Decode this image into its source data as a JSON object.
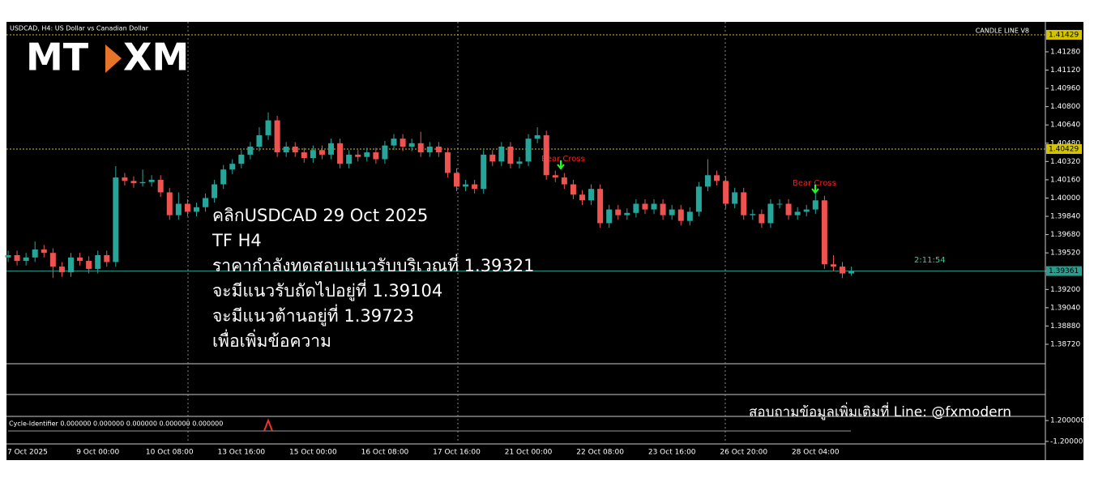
{
  "chart_data": {
    "type": "candlestick",
    "title": "USDCAD, H4:  US Dollar vs Canadian Dollar",
    "indicator_name": "CANDLE LINE V8",
    "logo": {
      "left": "MT",
      "right": "XM"
    },
    "categories": [
      "7 Oct 2025",
      null,
      null,
      null,
      null,
      null,
      null,
      null,
      null,
      null,
      "9 Oct 00:00",
      null,
      null,
      null,
      null,
      null,
      null,
      null,
      "10 Oct 08:00",
      null,
      null,
      null,
      null,
      null,
      null,
      null,
      "13 Oct 16:00",
      null,
      null,
      null,
      null,
      null,
      null,
      null,
      "15 Oct 00:00",
      null,
      null,
      null,
      null,
      null,
      null,
      null,
      "16 Oct 08:00",
      null,
      null,
      null,
      null,
      null,
      null,
      null,
      "17 Oct 16:00",
      null,
      null,
      null,
      null,
      null,
      null,
      null,
      "21 Oct 00:00",
      null,
      null,
      null,
      null,
      null,
      null,
      null,
      "22 Oct 08:00",
      null,
      null,
      null,
      null,
      null,
      null,
      null,
      "23 Oct 16:00",
      null,
      null,
      null,
      null,
      null,
      null,
      null,
      "26 Oct 20:00",
      null,
      null,
      null,
      null,
      null,
      null,
      null,
      "28 Oct 04:00",
      null,
      null,
      null,
      null
    ],
    "open": [
      1.3948,
      1.395,
      1.3945,
      1.3948,
      1.3955,
      1.3952,
      1.394,
      1.3935,
      1.3948,
      1.3945,
      1.3938,
      1.395,
      1.3944,
      1.4018,
      1.4015,
      1.4013,
      1.4014,
      1.4016,
      1.4005,
      1.3985,
      1.3995,
      1.3988,
      1.3992,
      1.4,
      1.4012,
      1.4025,
      1.403,
      1.4038,
      1.4045,
      1.4055,
      1.4068,
      1.404,
      1.4045,
      1.404,
      1.4035,
      1.4042,
      1.4038,
      1.4048,
      1.403,
      1.4038,
      1.4036,
      1.404,
      1.4034,
      1.4046,
      1.4052,
      1.4045,
      1.4048,
      1.404,
      1.4045,
      1.404,
      1.4022,
      1.401,
      1.4012,
      1.4008,
      1.4038,
      1.4032,
      1.4045,
      1.403,
      1.4032,
      1.4052,
      1.4055,
      1.402,
      1.4018,
      1.4012,
      1.4003,
      1.3998,
      1.4008,
      1.3978,
      1.399,
      1.3985,
      1.3987,
      1.3995,
      1.399,
      1.3995,
      1.3985,
      1.399,
      1.398,
      1.3988,
      1.401,
      1.402,
      1.4015,
      1.3995,
      1.4005,
      1.3985,
      1.3986,
      1.3978,
      1.3995,
      1.3995,
      1.3985,
      1.3988,
      1.399,
      1.3998,
      1.3942,
      1.394,
      1.3934
    ],
    "high": [
      1.3954,
      1.3954,
      1.3952,
      1.3962,
      1.3959,
      1.3956,
      1.3944,
      1.3952,
      1.3952,
      1.3949,
      1.3954,
      1.3954,
      1.4028,
      1.4022,
      1.4019,
      1.4025,
      1.402,
      1.402,
      1.4009,
      1.4005,
      1.3999,
      1.3996,
      1.4004,
      1.4016,
      1.4029,
      1.4034,
      1.4042,
      1.4049,
      1.4062,
      1.4075,
      1.4072,
      1.4049,
      1.4049,
      1.4044,
      1.4046,
      1.4046,
      1.4052,
      1.4052,
      1.4042,
      1.4042,
      1.4044,
      1.4044,
      1.405,
      1.4056,
      1.4056,
      1.4052,
      1.4058,
      1.4049,
      1.4049,
      1.4044,
      1.4026,
      1.4016,
      1.4016,
      1.4042,
      1.4042,
      1.4049,
      1.4049,
      1.4036,
      1.4056,
      1.4062,
      1.4059,
      1.4024,
      1.4022,
      1.4016,
      1.4007,
      1.4012,
      1.4012,
      1.3994,
      1.3994,
      1.3991,
      1.3999,
      1.3999,
      1.3999,
      1.3999,
      1.3994,
      1.3994,
      1.3992,
      1.4014,
      1.4034,
      1.4024,
      1.4019,
      1.4009,
      1.4009,
      1.399,
      1.399,
      1.3999,
      1.3999,
      1.3999,
      1.3992,
      1.3994,
      1.4005,
      1.4002,
      1.395,
      1.3944,
      1.394
    ],
    "low": [
      1.3944,
      1.3941,
      1.3941,
      1.3944,
      1.3948,
      1.393,
      1.3931,
      1.3931,
      1.3941,
      1.3934,
      1.3934,
      1.394,
      1.394,
      1.4011,
      1.4009,
      1.401,
      1.401,
      1.4001,
      1.3981,
      1.3981,
      1.3984,
      1.3984,
      1.3988,
      1.3996,
      1.4008,
      1.4021,
      1.4026,
      1.4034,
      1.4041,
      1.4051,
      1.4036,
      1.4036,
      1.4036,
      1.4031,
      1.4031,
      1.4034,
      1.4034,
      1.4026,
      1.4026,
      1.4032,
      1.4032,
      1.403,
      1.403,
      1.4042,
      1.4041,
      1.4041,
      1.4036,
      1.4036,
      1.4036,
      1.4018,
      1.4006,
      1.4006,
      1.4004,
      1.4004,
      1.4028,
      1.4028,
      1.4026,
      1.4026,
      1.4028,
      1.4048,
      1.4016,
      1.4014,
      1.4008,
      1.3999,
      1.3994,
      1.3994,
      1.3974,
      1.3974,
      1.3981,
      1.3981,
      1.3983,
      1.3986,
      1.3986,
      1.3981,
      1.3981,
      1.3976,
      1.3976,
      1.3984,
      1.4006,
      1.4011,
      1.3991,
      1.3991,
      1.3981,
      1.3981,
      1.3974,
      1.3974,
      1.3991,
      1.3981,
      1.3981,
      1.3984,
      1.3986,
      1.3938,
      1.3936,
      1.393,
      1.3932
    ],
    "close": [
      1.395,
      1.3945,
      1.3948,
      1.3955,
      1.3952,
      1.394,
      1.3935,
      1.3948,
      1.3945,
      1.3938,
      1.395,
      1.3944,
      1.4018,
      1.4015,
      1.4013,
      1.4014,
      1.4016,
      1.4005,
      1.3985,
      1.3995,
      1.3988,
      1.3992,
      1.4,
      1.4012,
      1.4025,
      1.403,
      1.4038,
      1.4045,
      1.4055,
      1.4068,
      1.404,
      1.4045,
      1.404,
      1.4035,
      1.4042,
      1.4038,
      1.4048,
      1.403,
      1.4038,
      1.4036,
      1.404,
      1.4034,
      1.4046,
      1.4052,
      1.4045,
      1.4048,
      1.404,
      1.4045,
      1.404,
      1.4022,
      1.401,
      1.4012,
      1.4008,
      1.4038,
      1.4032,
      1.4045,
      1.403,
      1.4032,
      1.4052,
      1.4055,
      1.402,
      1.4018,
      1.4012,
      1.4003,
      1.3998,
      1.4008,
      1.3978,
      1.399,
      1.3985,
      1.3987,
      1.3995,
      1.399,
      1.3995,
      1.3985,
      1.399,
      1.398,
      1.3988,
      1.401,
      1.402,
      1.4015,
      1.3995,
      1.4005,
      1.3985,
      1.3986,
      1.3978,
      1.3995,
      1.3995,
      1.3985,
      1.3988,
      1.399,
      1.3998,
      1.3942,
      1.394,
      1.3934,
      1.3936
    ],
    "up_color": "#26a69a",
    "down_color": "#ef5350",
    "ylim": [
      1.38564,
      1.41535
    ],
    "yticks": [
      {
        "value": 1.4128,
        "label": "1.41280"
      },
      {
        "value": 1.4112,
        "label": "1.41120"
      },
      {
        "value": 1.4096,
        "label": "1.40960"
      },
      {
        "value": 1.408,
        "label": "1.40800"
      },
      {
        "value": 1.4064,
        "label": "1.40640"
      },
      {
        "value": 1.4048,
        "label": "1.40480"
      },
      {
        "value": 1.4032,
        "label": "1.40320"
      },
      {
        "value": 1.4016,
        "label": "1.40160"
      },
      {
        "value": 1.4,
        "label": "1.40000"
      },
      {
        "value": 1.3984,
        "label": "1.39840"
      },
      {
        "value": 1.3968,
        "label": "1.39680"
      },
      {
        "value": 1.3952,
        "label": "1.39520"
      },
      {
        "value": 1.3936,
        "label": "1.39360"
      },
      {
        "value": 1.392,
        "label": "1.39200"
      },
      {
        "value": 1.3904,
        "label": "1.39040"
      },
      {
        "value": 1.3888,
        "label": "1.38880"
      },
      {
        "value": 1.3872,
        "label": "1.38720"
      }
    ],
    "price_lines": [
      {
        "value": 1.41429,
        "label": "1.41429",
        "color": "#d4c400"
      },
      {
        "value": 1.40429,
        "label": "1.40429",
        "color": "#d4c400"
      },
      {
        "value": 1.39361,
        "label": "1.39361",
        "color": "#2a9d8f"
      }
    ],
    "countdown": "2:11:54",
    "annotations": [
      "Bear Cross",
      "Bear Cross"
    ],
    "note_lines": [
      "คลิกUSDCAD 29 Oct 2025",
      "TF H4",
      "ราคากำลังทดสอบแนวรับบริเวณที่ 1.39321",
      "จะมีแนวรับถัดไปอยู่ที่ 1.39104",
      "จะมีแนวต้านอยู่ที่ 1.39723",
      "เพื่อเพิ่มข้อความ"
    ],
    "footer": "สอบถามข้อมูลเพิ่มเติมที่ Line: @fxmodern",
    "subwindow": {
      "label": "Cycle-Identifier 0.000000 0.000000 0.000000 0.000000 0.000000",
      "ylim": [
        -1.49,
        1.68
      ],
      "yticks": [
        {
          "value": 1.2,
          "label": "1.200000"
        },
        {
          "value": -1.2,
          "label": "-1.200000"
        }
      ]
    }
  }
}
